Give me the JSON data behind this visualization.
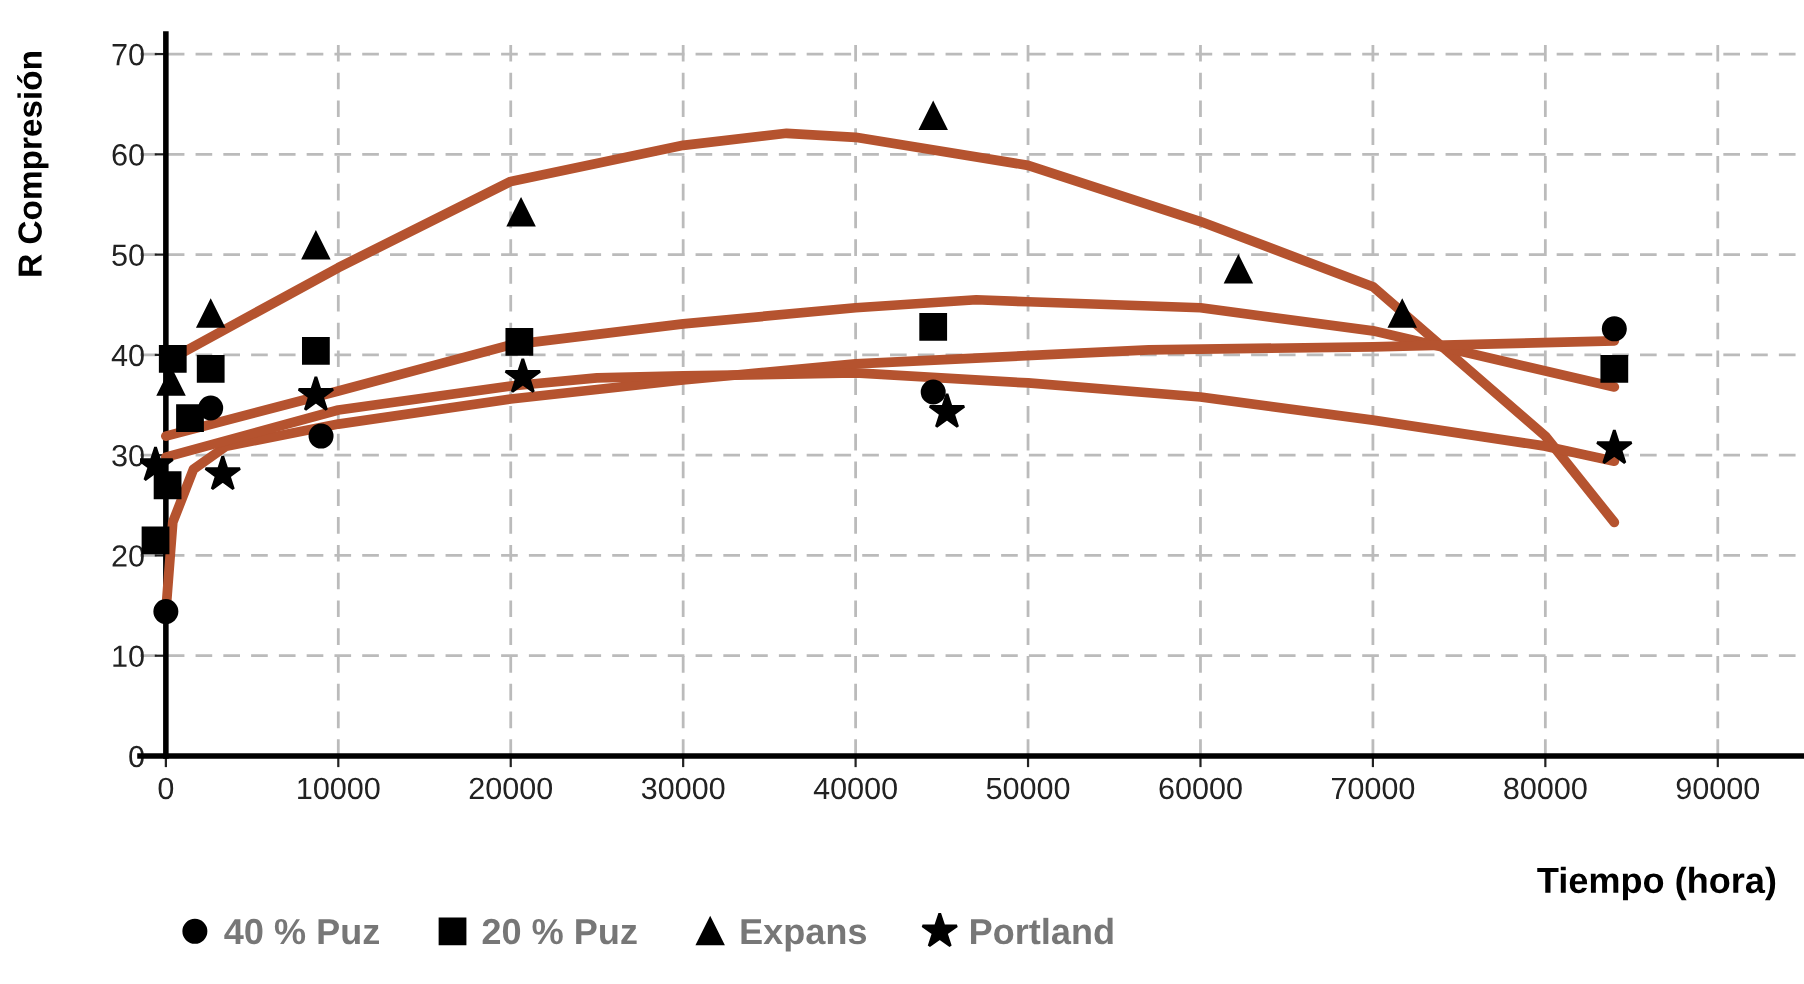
{
  "chart_data": {
    "type": "scatter",
    "xlabel": "Tiempo (hora)",
    "ylabel": "R Compresión",
    "xlim": [
      -1500,
      95000
    ],
    "ylim": [
      0,
      72
    ],
    "xticks": [
      0,
      10000,
      20000,
      30000,
      40000,
      50000,
      60000,
      70000,
      80000,
      90000
    ],
    "yticks": [
      0,
      10,
      20,
      30,
      40,
      50,
      60,
      70
    ],
    "grid": true,
    "legend": "bottom left",
    "series": [
      {
        "type": "line",
        "color": "#b5532f",
        "marker": "none",
        "x": [
          400,
          10000,
          20000,
          30000,
          36000,
          40000,
          50000,
          60000,
          70000,
          80000,
          84000
        ],
        "values": [
          39.7,
          48.7,
          57.3,
          60.9,
          62.1,
          61.7,
          58.9,
          53.3,
          46.8,
          31.9,
          23.3
        ]
      },
      {
        "type": "line",
        "color": "#b5532f",
        "marker": "none",
        "x": [
          0,
          10000,
          20000,
          30000,
          40000,
          47000,
          50000,
          60000,
          70000,
          84000
        ],
        "values": [
          31.9,
          36.4,
          41.0,
          43.1,
          44.7,
          45.5,
          45.3,
          44.7,
          42.4,
          36.8
        ]
      },
      {
        "type": "line",
        "color": "#b5532f",
        "marker": "none",
        "x": [
          0,
          400,
          1600,
          3500,
          10000,
          20000,
          30000,
          40000,
          57000,
          70000,
          84000
        ],
        "values": [
          14.4,
          23.3,
          28.6,
          30.9,
          33.1,
          35.6,
          37.5,
          39.1,
          40.5,
          40.8,
          41.4
        ]
      },
      {
        "type": "line",
        "color": "#b5532f",
        "marker": "none",
        "x": [
          0,
          10000,
          20000,
          25000,
          30000,
          40000,
          50000,
          60000,
          70000,
          80000,
          84000
        ],
        "values": [
          29.8,
          34.5,
          36.9,
          37.7,
          37.9,
          38.2,
          37.2,
          35.8,
          33.5,
          30.9,
          29.4
        ]
      },
      {
        "name": "40 % Puz",
        "color": "#000000",
        "marker": "circle",
        "x": [
          0,
          2600,
          9000,
          44500,
          84000
        ],
        "values": [
          14.4,
          34.7,
          31.9,
          36.3,
          42.6
        ]
      },
      {
        "name": "20 % Puz",
        "color": "#000000",
        "marker": "square",
        "x": [
          -600,
          100,
          400,
          1400,
          2600,
          8700,
          20500,
          44500,
          84000
        ],
        "values": [
          21.5,
          27,
          39.6,
          33.7,
          38.6,
          40.4,
          41.3,
          42.8,
          38.6
        ]
      },
      {
        "name": "Expans",
        "color": "#000000",
        "marker": "triangle",
        "x": [
          300,
          2600,
          8700,
          20600,
          44500,
          62200,
          71700
        ],
        "values": [
          37.3,
          44.1,
          50.9,
          54.2,
          63.8,
          48.5,
          44.1
        ]
      },
      {
        "name": "Portland",
        "color": "#000000",
        "marker": "star",
        "x": [
          -600,
          3300,
          8700,
          20700,
          45300,
          84000
        ],
        "values": [
          29,
          28.1,
          36,
          37.8,
          34.3,
          30.7
        ]
      }
    ]
  }
}
